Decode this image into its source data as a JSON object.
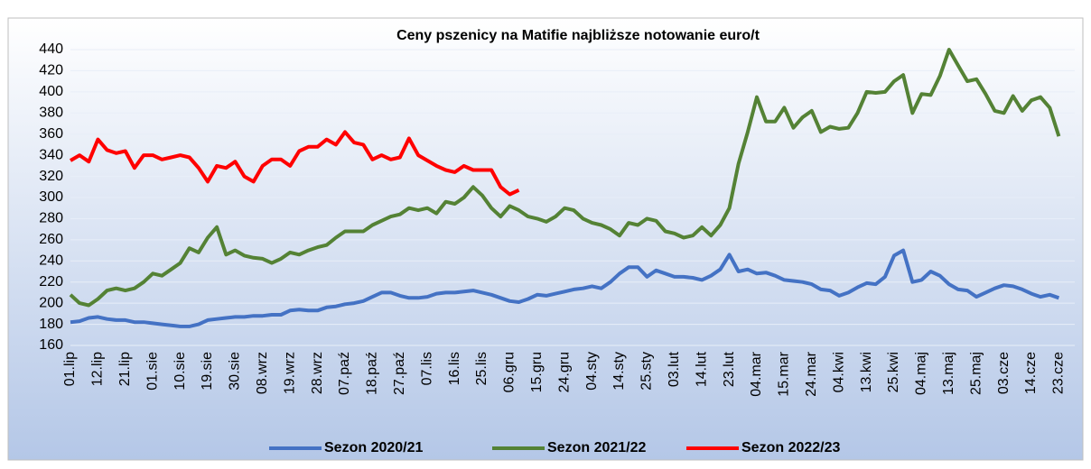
{
  "chart_data": {
    "type": "line",
    "title": "Ceny pszenicy na Matifie najbliższe notowanie euro/t",
    "categories": [
      "01.lip",
      null,
      null,
      "12.lip",
      null,
      null,
      "21.lip",
      null,
      null,
      "01.sie",
      null,
      null,
      "10.sie",
      null,
      null,
      "19.sie",
      null,
      null,
      "30.sie",
      null,
      null,
      "08.wrz",
      null,
      null,
      "19.wrz",
      null,
      null,
      "28.wrz",
      null,
      null,
      "07.paź",
      null,
      null,
      "18.paź",
      null,
      null,
      "27.paź",
      null,
      null,
      "07.lis",
      null,
      null,
      "16.lis",
      null,
      null,
      "25.lis",
      null,
      null,
      "06.gru",
      null,
      null,
      "15.gru",
      null,
      null,
      "24.gru",
      null,
      null,
      "04.sty",
      null,
      null,
      "14.sty",
      null,
      null,
      "25.sty",
      null,
      null,
      "03.lut",
      null,
      null,
      "14.lut",
      null,
      null,
      "23.lut",
      null,
      null,
      "04.mar",
      null,
      null,
      "15.mar",
      null,
      null,
      "24.mar",
      null,
      null,
      "04.kwi",
      null,
      null,
      "13.kwi",
      null,
      null,
      "25.kwi",
      null,
      null,
      "04.maj",
      null,
      null,
      "13.maj",
      null,
      null,
      "25.maj",
      null,
      null,
      "03.cze",
      null,
      null,
      "14.cze",
      null,
      null,
      "23.cze"
    ],
    "series": [
      {
        "name": "Sezon 2020/21",
        "color": "#4472c4",
        "values": [
          182,
          183,
          186,
          187,
          185,
          184,
          184,
          182,
          182,
          181,
          180,
          179,
          178,
          178,
          180,
          184,
          185,
          186,
          187,
          187,
          188,
          188,
          189,
          189,
          193,
          194,
          193,
          193,
          196,
          197,
          199,
          200,
          202,
          206,
          210,
          210,
          207,
          205,
          205,
          206,
          209,
          210,
          210,
          211,
          212,
          210,
          208,
          205,
          202,
          201,
          204,
          208,
          207,
          209,
          211,
          213,
          214,
          216,
          214,
          220,
          228,
          234,
          234,
          225,
          231,
          228,
          225,
          225,
          224,
          222,
          226,
          232,
          246,
          230,
          232,
          228,
          229,
          226,
          222,
          221,
          220,
          218,
          213,
          212,
          207,
          210,
          215,
          219,
          218,
          225,
          245,
          250,
          220,
          222,
          230,
          226,
          218,
          213,
          212,
          206,
          210,
          214,
          217,
          216,
          213,
          209,
          206,
          208,
          205
        ]
      },
      {
        "name": "Sezon 2021/22",
        "color": "#548235",
        "values": [
          208,
          200,
          198,
          204,
          212,
          214,
          212,
          214,
          220,
          228,
          226,
          232,
          238,
          252,
          248,
          262,
          272,
          246,
          250,
          245,
          243,
          242,
          238,
          242,
          248,
          246,
          250,
          253,
          255,
          262,
          268,
          268,
          268,
          274,
          278,
          282,
          284,
          290,
          288,
          290,
          285,
          296,
          294,
          300,
          310,
          302,
          290,
          282,
          292,
          288,
          282,
          280,
          277,
          282,
          290,
          288,
          280,
          276,
          274,
          270,
          264,
          276,
          274,
          280,
          278,
          268,
          266,
          262,
          264,
          272,
          264,
          274,
          290,
          332,
          362,
          395,
          372,
          372,
          385,
          366,
          376,
          382,
          362,
          367,
          365,
          366,
          380,
          400,
          399,
          400,
          410,
          416,
          380,
          398,
          397,
          415,
          440,
          425,
          410,
          412,
          398,
          382,
          380,
          396,
          382,
          392,
          395,
          385,
          358
        ]
      },
      {
        "name": "Sezon 2022/23",
        "color": "#ff0000",
        "values": [
          335,
          340,
          334,
          355,
          345,
          342,
          344,
          328,
          340,
          340,
          336,
          338,
          340,
          338,
          328,
          315,
          330,
          328,
          334,
          320,
          315,
          330,
          336,
          336,
          330,
          344,
          348,
          348,
          355,
          350,
          362,
          352,
          350,
          336,
          340,
          336,
          338,
          356,
          340,
          335,
          330,
          326,
          324,
          330,
          326,
          326,
          326,
          310,
          303,
          307,
          null,
          null,
          null,
          null,
          null,
          null,
          null,
          null,
          null,
          null,
          null,
          null,
          null,
          null,
          null,
          null,
          null,
          null,
          null,
          null,
          null,
          null,
          null,
          null,
          null,
          null,
          null,
          null,
          null,
          null,
          null,
          null,
          null,
          null,
          null,
          null,
          null,
          null,
          null,
          null,
          null,
          null,
          null,
          null,
          null,
          null,
          null,
          null,
          null,
          null,
          null,
          null,
          null,
          null,
          null,
          null,
          null,
          null,
          null
        ]
      }
    ],
    "ylim": [
      160,
      440
    ],
    "yticks": [
      160,
      180,
      200,
      220,
      240,
      260,
      280,
      300,
      320,
      340,
      360,
      380,
      400,
      420,
      440
    ],
    "grid": true,
    "legend": "bottom"
  }
}
